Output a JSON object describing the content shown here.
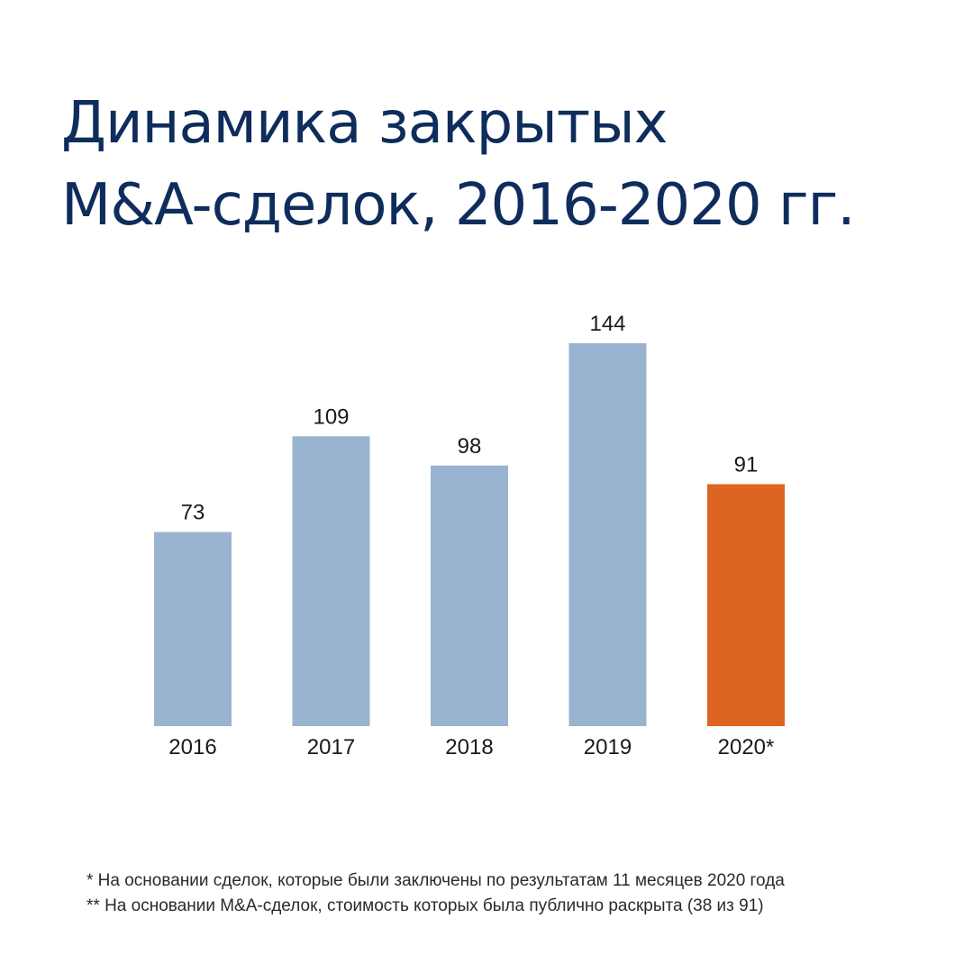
{
  "title": {
    "line1": "Динамика закрытых",
    "line2": "M&A-сделок, 2016-2020 гг."
  },
  "colors": {
    "title": "#0e2d5c",
    "bar_default": "#9ab3d0",
    "bar_highlight": "#dd6521",
    "text": "#1a1a1a"
  },
  "chart_data": {
    "type": "bar",
    "categories": [
      "2016",
      "2017",
      "2018",
      "2019",
      "2020*"
    ],
    "values": [
      73,
      109,
      98,
      144,
      91
    ],
    "highlight_index": 4,
    "title": "",
    "xlabel": "",
    "ylabel": "",
    "ylim": [
      0,
      144
    ],
    "grid": false,
    "legend": "none"
  },
  "footnotes": [
    "* На основании сделок, которые были заключены по результатам 11 месяцев 2020 года",
    "** На основании M&A-сделок, стоимость которых была публично раскрыта (38 из 91)"
  ]
}
